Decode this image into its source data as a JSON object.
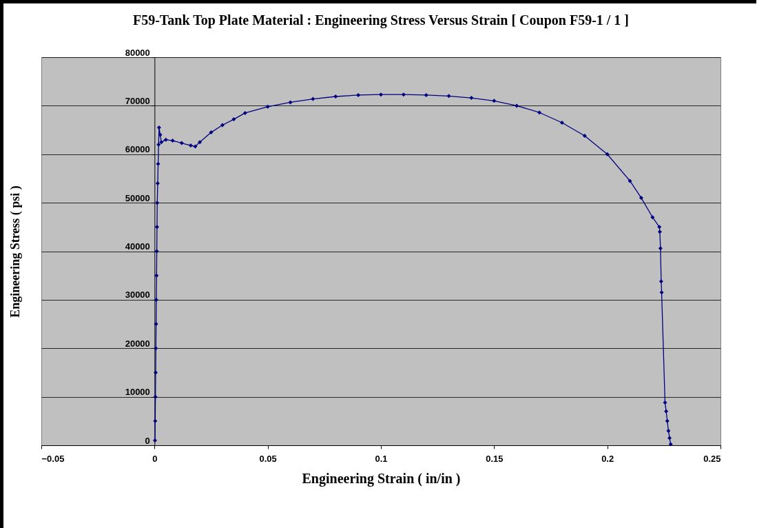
{
  "chart_data": {
    "type": "line",
    "title": "F59-Tank Top Plate Material : Engineering Stress Versus Strain [ Coupon F59-1 / 1 ]",
    "xlabel": "Engineering Strain ( in/in )",
    "ylabel": "Engineering Stress ( psi )",
    "x": [
      0.0002,
      0.0003,
      0.0004,
      0.0005,
      0.0006,
      0.0007,
      0.0008,
      0.0009,
      0.001,
      0.0011,
      0.0012,
      0.0014,
      0.0016,
      0.0018,
      0.002,
      0.0025,
      0.003,
      0.005,
      0.008,
      0.012,
      0.016,
      0.018,
      0.02,
      0.025,
      0.03,
      0.035,
      0.04,
      0.05,
      0.06,
      0.07,
      0.08,
      0.09,
      0.1,
      0.11,
      0.12,
      0.13,
      0.14,
      0.15,
      0.16,
      0.17,
      0.18,
      0.19,
      0.2,
      0.21,
      0.215,
      0.22,
      0.223,
      0.2232,
      0.2235,
      0.2238,
      0.224,
      0.2255,
      0.226,
      0.2265,
      0.227,
      0.2275,
      0.228
    ],
    "series": [
      {
        "color": "#000080",
        "values": [
          1000,
          5000,
          10000,
          15000,
          20000,
          25000,
          30000,
          35000,
          40000,
          45000,
          50000,
          54000,
          58000,
          62000,
          65500,
          64000,
          62500,
          63000,
          62800,
          62300,
          61800,
          61600,
          62500,
          64500,
          66000,
          67200,
          68500,
          69800,
          70700,
          71400,
          71900,
          72200,
          72300,
          72300,
          72200,
          72000,
          71600,
          71000,
          70000,
          68600,
          66500,
          63800,
          60000,
          54500,
          51000,
          47000,
          45000,
          44000,
          40600,
          33800,
          31500,
          8800,
          7000,
          5000,
          3000,
          1500,
          200
        ]
      }
    ],
    "xlim": [
      -0.05,
      0.25
    ],
    "xticks": [
      -0.05,
      0,
      0.05,
      0.1,
      0.15,
      0.2,
      0.25
    ],
    "ylim": [
      0,
      80000
    ],
    "yticks": [
      0,
      10000,
      20000,
      30000,
      40000,
      50000,
      60000,
      70000,
      80000
    ],
    "grid": "y",
    "marker": "diamond",
    "line_style": "solid",
    "legend": false
  }
}
